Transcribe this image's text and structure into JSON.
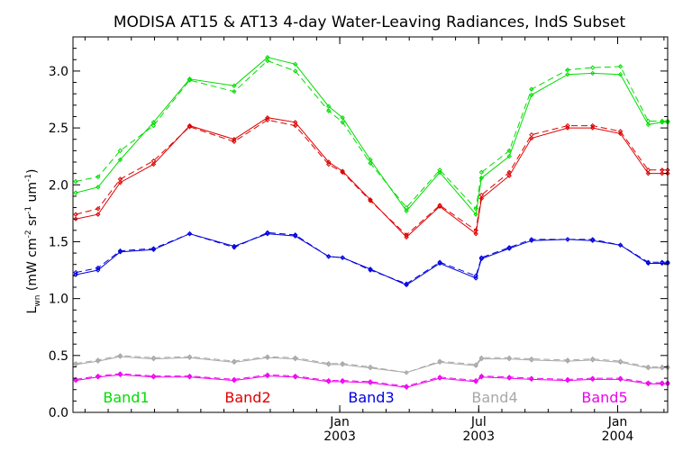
{
  "chart_data": {
    "type": "line",
    "title": "MODISA AT15 & AT13 4-day Water-Leaving Radiances, IndS Subset",
    "xlabel": "",
    "ylabel_main": "L",
    "ylabel_sub": "wn",
    "ylabel_units": " (mW cm",
    "ylabel_units_exp1": "-2",
    "ylabel_units_mid": " sr",
    "ylabel_units_exp2": "-1",
    "ylabel_units_end": " um",
    "ylabel_units_exp3": "-1",
    "ylabel_units_close": ")",
    "ylim": [
      0.0,
      3.3
    ],
    "xlim": [
      2002.04,
      2004.18
    ],
    "y_ticks": [
      {
        "value": 0.0,
        "label": "0.0"
      },
      {
        "value": 0.5,
        "label": "0.5"
      },
      {
        "value": 1.0,
        "label": "1.0"
      },
      {
        "value": 1.5,
        "label": "1.5"
      },
      {
        "value": 2.0,
        "label": "2.0"
      },
      {
        "value": 2.5,
        "label": "2.5"
      },
      {
        "value": 3.0,
        "label": "3.0"
      }
    ],
    "x_ticks": [
      {
        "value": 2003.0,
        "month": "Jan",
        "year": "2003"
      },
      {
        "value": 2003.5,
        "month": "Jul",
        "year": "2003"
      },
      {
        "value": 2004.0,
        "month": "Jan",
        "year": "2004"
      }
    ],
    "x": [
      2002.05,
      2002.13,
      2002.21,
      2002.33,
      2002.46,
      2002.62,
      2002.74,
      2002.84,
      2002.96,
      2003.01,
      2003.11,
      2003.24,
      2003.36,
      2003.49,
      2003.51,
      2003.61,
      2003.69,
      2003.82,
      2003.91,
      2004.01,
      2004.11,
      2004.16,
      2004.18
    ],
    "series": [
      {
        "name": "Band1",
        "color": "#00dd00",
        "values": [
          1.93,
          1.98,
          2.22,
          2.55,
          2.93,
          2.87,
          3.12,
          3.06,
          2.69,
          2.59,
          2.22,
          1.77,
          2.11,
          1.74,
          2.06,
          2.25,
          2.79,
          2.97,
          2.98,
          2.97,
          2.53,
          2.55,
          2.55
        ],
        "values_dashed": [
          2.03,
          2.07,
          2.3,
          2.52,
          2.92,
          2.82,
          3.09,
          3.0,
          2.65,
          2.55,
          2.19,
          1.8,
          2.13,
          1.79,
          2.11,
          2.3,
          2.84,
          3.01,
          3.03,
          3.04,
          2.56,
          2.56,
          2.56
        ]
      },
      {
        "name": "Band2",
        "color": "#dd0000",
        "values": [
          1.7,
          1.74,
          2.02,
          2.18,
          2.52,
          2.4,
          2.59,
          2.55,
          2.2,
          2.12,
          1.87,
          1.54,
          1.81,
          1.57,
          1.88,
          2.08,
          2.41,
          2.5,
          2.5,
          2.45,
          2.1,
          2.1,
          2.1
        ],
        "values_dashed": [
          1.74,
          1.79,
          2.05,
          2.21,
          2.51,
          2.38,
          2.57,
          2.52,
          2.18,
          2.11,
          1.86,
          1.56,
          1.82,
          1.6,
          1.91,
          2.11,
          2.44,
          2.52,
          2.52,
          2.47,
          2.13,
          2.13,
          2.13
        ]
      },
      {
        "name": "Band3",
        "color": "#0000dd",
        "values": [
          1.21,
          1.25,
          1.41,
          1.43,
          1.57,
          1.46,
          1.57,
          1.55,
          1.37,
          1.36,
          1.26,
          1.12,
          1.31,
          1.18,
          1.35,
          1.44,
          1.51,
          1.52,
          1.51,
          1.47,
          1.31,
          1.31,
          1.31
        ],
        "values_dashed": [
          1.23,
          1.27,
          1.42,
          1.44,
          1.57,
          1.45,
          1.58,
          1.56,
          1.37,
          1.36,
          1.25,
          1.13,
          1.32,
          1.2,
          1.36,
          1.45,
          1.52,
          1.52,
          1.52,
          1.47,
          1.32,
          1.32,
          1.32
        ]
      },
      {
        "name": "Band4",
        "color": "#a8a8a8",
        "values": [
          0.42,
          0.45,
          0.49,
          0.47,
          0.48,
          0.44,
          0.48,
          0.47,
          0.42,
          0.42,
          0.39,
          0.35,
          0.44,
          0.41,
          0.47,
          0.47,
          0.46,
          0.45,
          0.46,
          0.44,
          0.39,
          0.39,
          0.39
        ],
        "values_dashed": [
          0.43,
          0.46,
          0.5,
          0.48,
          0.49,
          0.45,
          0.49,
          0.48,
          0.43,
          0.43,
          0.4,
          0.35,
          0.45,
          0.42,
          0.48,
          0.48,
          0.47,
          0.46,
          0.47,
          0.45,
          0.4,
          0.4,
          0.4
        ]
      },
      {
        "name": "Band5",
        "color": "#ee00ee",
        "values": [
          0.28,
          0.31,
          0.33,
          0.31,
          0.31,
          0.28,
          0.32,
          0.31,
          0.27,
          0.27,
          0.26,
          0.22,
          0.3,
          0.27,
          0.31,
          0.3,
          0.29,
          0.28,
          0.29,
          0.29,
          0.25,
          0.25,
          0.25
        ],
        "values_dashed": [
          0.29,
          0.32,
          0.34,
          0.32,
          0.32,
          0.29,
          0.33,
          0.32,
          0.28,
          0.28,
          0.27,
          0.23,
          0.31,
          0.28,
          0.32,
          0.31,
          0.3,
          0.29,
          0.3,
          0.3,
          0.26,
          0.26,
          0.26
        ]
      }
    ],
    "legend_placement": "bottom, inside plot, inline row",
    "grid": false
  }
}
